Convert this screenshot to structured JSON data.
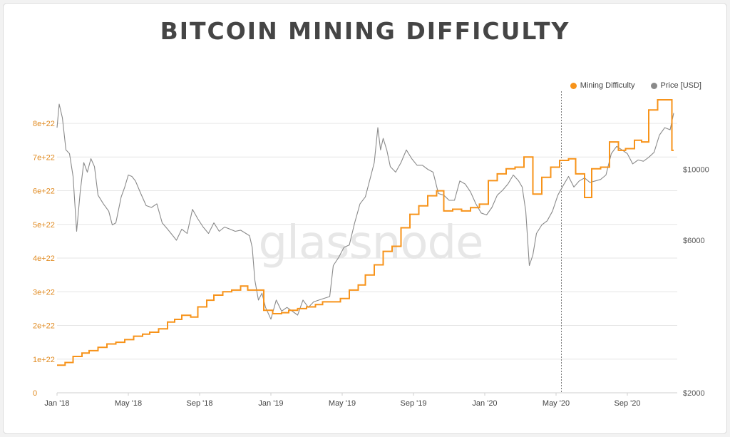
{
  "title": "BITCOIN MINING DIFFICULTY",
  "watermark": "glassnode",
  "colors": {
    "difficulty": "#f7931a",
    "price": "#8a8a8a",
    "left_axis_text": "#e08a20",
    "right_axis_text": "#555555",
    "grid": "#e6e6e6"
  },
  "legend": [
    {
      "label": "Mining Difficulty",
      "color": "#f7931a"
    },
    {
      "label": "Price [USD]",
      "color": "#8a8a8a"
    }
  ],
  "chart_data": {
    "type": "line",
    "title": "BITCOIN MINING DIFFICULTY",
    "x_ticks": [
      "Jan '18",
      "May '18",
      "Sep '18",
      "Jan '19",
      "May '19",
      "Sep '19",
      "Jan '20",
      "May '20",
      "Sep '20"
    ],
    "y_left": {
      "ticks": [
        "0",
        "1e+22",
        "2e+22",
        "3e+22",
        "4e+22",
        "5e+22",
        "6e+22",
        "7e+22",
        "8e+22"
      ],
      "lim": [
        0,
        8.7e+22
      ]
    },
    "y_right": {
      "scale": "log",
      "ticks": [
        "$2000",
        "$6000",
        "$10000"
      ],
      "tick_values": [
        2000,
        6000,
        10000
      ],
      "lim": [
        2000,
        16500
      ]
    },
    "x_range_months": [
      0,
      34.8
    ],
    "vertical_marker_month": 28.3,
    "series": [
      {
        "name": "Mining Difficulty",
        "axis": "left",
        "shape": "step",
        "points": [
          [
            0.0,
            8.2e+21
          ],
          [
            0.45,
            9e+21
          ],
          [
            0.9,
            1.08e+22
          ],
          [
            1.4,
            1.18e+22
          ],
          [
            1.8,
            1.25e+22
          ],
          [
            2.3,
            1.35e+22
          ],
          [
            2.8,
            1.45e+22
          ],
          [
            3.3,
            1.5e+22
          ],
          [
            3.8,
            1.58e+22
          ],
          [
            4.3,
            1.68e+22
          ],
          [
            4.8,
            1.74e+22
          ],
          [
            5.2,
            1.8e+22
          ],
          [
            5.7,
            1.9e+22
          ],
          [
            6.2,
            2.1e+22
          ],
          [
            6.6,
            2.18e+22
          ],
          [
            7.0,
            2.3e+22
          ],
          [
            7.5,
            2.25e+22
          ],
          [
            7.9,
            2.55e+22
          ],
          [
            8.4,
            2.75e+22
          ],
          [
            8.8,
            2.9e+22
          ],
          [
            9.3,
            3e+22
          ],
          [
            9.8,
            3.05e+22
          ],
          [
            10.3,
            3.17e+22
          ],
          [
            10.7,
            3.05e+22
          ],
          [
            11.2,
            3.05e+22
          ],
          [
            11.6,
            2.45e+22
          ],
          [
            12.1,
            2.35e+22
          ],
          [
            12.6,
            2.38e+22
          ],
          [
            13.0,
            2.45e+22
          ],
          [
            13.5,
            2.5e+22
          ],
          [
            14.0,
            2.55e+22
          ],
          [
            14.5,
            2.62e+22
          ],
          [
            14.9,
            2.7e+22
          ],
          [
            15.4,
            2.7e+22
          ],
          [
            15.9,
            2.8e+22
          ],
          [
            16.4,
            3.05e+22
          ],
          [
            16.9,
            3.2e+22
          ],
          [
            17.3,
            3.5e+22
          ],
          [
            17.8,
            3.8e+22
          ],
          [
            18.3,
            4.2e+22
          ],
          [
            18.8,
            4.35e+22
          ],
          [
            19.3,
            4.9e+22
          ],
          [
            19.8,
            5.3e+22
          ],
          [
            20.3,
            5.55e+22
          ],
          [
            20.8,
            5.85e+22
          ],
          [
            21.3,
            6e+22
          ],
          [
            21.7,
            5.4e+22
          ],
          [
            22.2,
            5.45e+22
          ],
          [
            22.7,
            5.4e+22
          ],
          [
            23.2,
            5.5e+22
          ],
          [
            23.7,
            5.6e+22
          ],
          [
            24.2,
            6.3e+22
          ],
          [
            24.7,
            6.5e+22
          ],
          [
            25.2,
            6.65e+22
          ],
          [
            25.7,
            6.7e+22
          ],
          [
            26.2,
            7e+22
          ],
          [
            26.7,
            5.9e+22
          ],
          [
            27.2,
            6.4e+22
          ],
          [
            27.7,
            6.7e+22
          ],
          [
            28.2,
            6.9e+22
          ],
          [
            28.7,
            6.95e+22
          ],
          [
            29.1,
            6.5e+22
          ],
          [
            29.6,
            5.8e+22
          ],
          [
            30.0,
            6.65e+22
          ],
          [
            30.5,
            6.7e+22
          ],
          [
            31.0,
            7.45e+22
          ],
          [
            31.5,
            7.2e+22
          ],
          [
            31.9,
            7.25e+22
          ],
          [
            32.4,
            7.5e+22
          ],
          [
            32.8,
            7.45e+22
          ],
          [
            33.2,
            8.4e+22
          ],
          [
            33.7,
            8.7e+22
          ],
          [
            34.3,
            8.7e+22
          ],
          [
            34.5,
            7.2e+22
          ],
          [
            34.6,
            7.2e+22
          ]
        ]
      },
      {
        "name": "Price [USD]",
        "axis": "right",
        "shape": "line",
        "points": [
          [
            0.0,
            13500
          ],
          [
            0.12,
            16000
          ],
          [
            0.3,
            14500
          ],
          [
            0.5,
            11500
          ],
          [
            0.7,
            11200
          ],
          [
            0.9,
            9500
          ],
          [
            1.0,
            7800
          ],
          [
            1.1,
            6400
          ],
          [
            1.3,
            8500
          ],
          [
            1.5,
            10500
          ],
          [
            1.7,
            9800
          ],
          [
            1.9,
            10800
          ],
          [
            2.1,
            10200
          ],
          [
            2.3,
            8300
          ],
          [
            2.6,
            7800
          ],
          [
            2.9,
            7400
          ],
          [
            3.1,
            6700
          ],
          [
            3.3,
            6800
          ],
          [
            3.6,
            8200
          ],
          [
            3.8,
            8800
          ],
          [
            4.0,
            9600
          ],
          [
            4.2,
            9500
          ],
          [
            4.4,
            9200
          ],
          [
            4.7,
            8400
          ],
          [
            5.0,
            7700
          ],
          [
            5.3,
            7600
          ],
          [
            5.6,
            7800
          ],
          [
            5.9,
            6800
          ],
          [
            6.2,
            6500
          ],
          [
            6.5,
            6200
          ],
          [
            6.7,
            6000
          ],
          [
            7.0,
            6500
          ],
          [
            7.3,
            6300
          ],
          [
            7.6,
            7500
          ],
          [
            7.9,
            7000
          ],
          [
            8.2,
            6600
          ],
          [
            8.5,
            6300
          ],
          [
            8.8,
            6800
          ],
          [
            9.1,
            6400
          ],
          [
            9.4,
            6600
          ],
          [
            9.7,
            6500
          ],
          [
            10.0,
            6400
          ],
          [
            10.3,
            6450
          ],
          [
            10.6,
            6300
          ],
          [
            10.8,
            6200
          ],
          [
            10.95,
            5700
          ],
          [
            11.1,
            4500
          ],
          [
            11.3,
            3900
          ],
          [
            11.5,
            4100
          ],
          [
            11.7,
            3700
          ],
          [
            12.0,
            3400
          ],
          [
            12.3,
            3900
          ],
          [
            12.6,
            3600
          ],
          [
            12.9,
            3700
          ],
          [
            13.2,
            3600
          ],
          [
            13.5,
            3500
          ],
          [
            13.8,
            3900
          ],
          [
            14.1,
            3700
          ],
          [
            14.4,
            3850
          ],
          [
            14.7,
            3900
          ],
          [
            15.0,
            3950
          ],
          [
            15.3,
            4000
          ],
          [
            15.5,
            5000
          ],
          [
            15.8,
            5300
          ],
          [
            16.1,
            5700
          ],
          [
            16.4,
            5800
          ],
          [
            16.7,
            6800
          ],
          [
            17.0,
            7800
          ],
          [
            17.3,
            8200
          ],
          [
            17.6,
            9500
          ],
          [
            17.8,
            10500
          ],
          [
            18.0,
            13500
          ],
          [
            18.15,
            11500
          ],
          [
            18.3,
            12500
          ],
          [
            18.5,
            11500
          ],
          [
            18.7,
            10200
          ],
          [
            19.0,
            9800
          ],
          [
            19.3,
            10500
          ],
          [
            19.6,
            11500
          ],
          [
            19.9,
            10800
          ],
          [
            20.2,
            10300
          ],
          [
            20.5,
            10300
          ],
          [
            20.8,
            10000
          ],
          [
            21.1,
            9800
          ],
          [
            21.4,
            8400
          ],
          [
            21.7,
            8300
          ],
          [
            22.0,
            8000
          ],
          [
            22.3,
            8000
          ],
          [
            22.6,
            9200
          ],
          [
            22.9,
            9000
          ],
          [
            23.2,
            8500
          ],
          [
            23.5,
            7800
          ],
          [
            23.8,
            7300
          ],
          [
            24.1,
            7200
          ],
          [
            24.4,
            7600
          ],
          [
            24.7,
            8300
          ],
          [
            25.0,
            8600
          ],
          [
            25.3,
            9000
          ],
          [
            25.6,
            9600
          ],
          [
            25.9,
            9200
          ],
          [
            26.1,
            8800
          ],
          [
            26.3,
            7400
          ],
          [
            26.5,
            5000
          ],
          [
            26.7,
            5400
          ],
          [
            26.9,
            6300
          ],
          [
            27.2,
            6700
          ],
          [
            27.5,
            6900
          ],
          [
            27.8,
            7400
          ],
          [
            28.1,
            8300
          ],
          [
            28.4,
            8900
          ],
          [
            28.7,
            9500
          ],
          [
            29.0,
            8800
          ],
          [
            29.3,
            9200
          ],
          [
            29.6,
            9400
          ],
          [
            29.9,
            9100
          ],
          [
            30.2,
            9200
          ],
          [
            30.5,
            9300
          ],
          [
            30.8,
            9600
          ],
          [
            31.1,
            11200
          ],
          [
            31.4,
            11800
          ],
          [
            31.7,
            11500
          ],
          [
            32.0,
            11200
          ],
          [
            32.3,
            10400
          ],
          [
            32.6,
            10700
          ],
          [
            32.9,
            10600
          ],
          [
            33.2,
            10900
          ],
          [
            33.5,
            11300
          ],
          [
            33.8,
            12800
          ],
          [
            34.1,
            13500
          ],
          [
            34.4,
            13300
          ],
          [
            34.6,
            15000
          ]
        ]
      }
    ]
  }
}
